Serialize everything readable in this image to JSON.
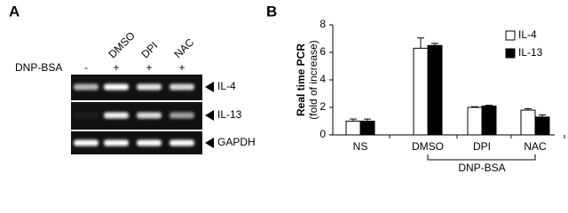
{
  "panels": {
    "a": "A",
    "b": "B"
  },
  "gel": {
    "row_label": "DNP-BSA",
    "lanes": [
      "DMSO",
      "DPI",
      "NAC"
    ],
    "treatments": [
      "-",
      "+",
      "+",
      "+"
    ],
    "bands": [
      "IL-4",
      "IL-13",
      "GAPDH"
    ]
  },
  "chart_data": {
    "type": "bar",
    "y_label": "Real time PCR",
    "y_sublabel": "(fold of increase)",
    "categories": [
      "NS",
      "DMSO",
      "DPI",
      "NAC"
    ],
    "series": [
      {
        "name": "IL-4",
        "color": "#ffffff",
        "values": [
          1.0,
          6.3,
          2.0,
          1.8
        ],
        "errors": [
          0.15,
          0.75,
          0.05,
          0.1
        ]
      },
      {
        "name": "IL-13",
        "color": "#000000",
        "values": [
          1.0,
          6.5,
          2.1,
          1.3
        ],
        "errors": [
          0.15,
          0.15,
          0.05,
          0.15
        ]
      }
    ],
    "ylim": [
      0,
      8
    ],
    "yticks": [
      0,
      2,
      4,
      6,
      8
    ],
    "grid": false,
    "bracket_label": "DNP-BSA",
    "legend": "upper right"
  }
}
